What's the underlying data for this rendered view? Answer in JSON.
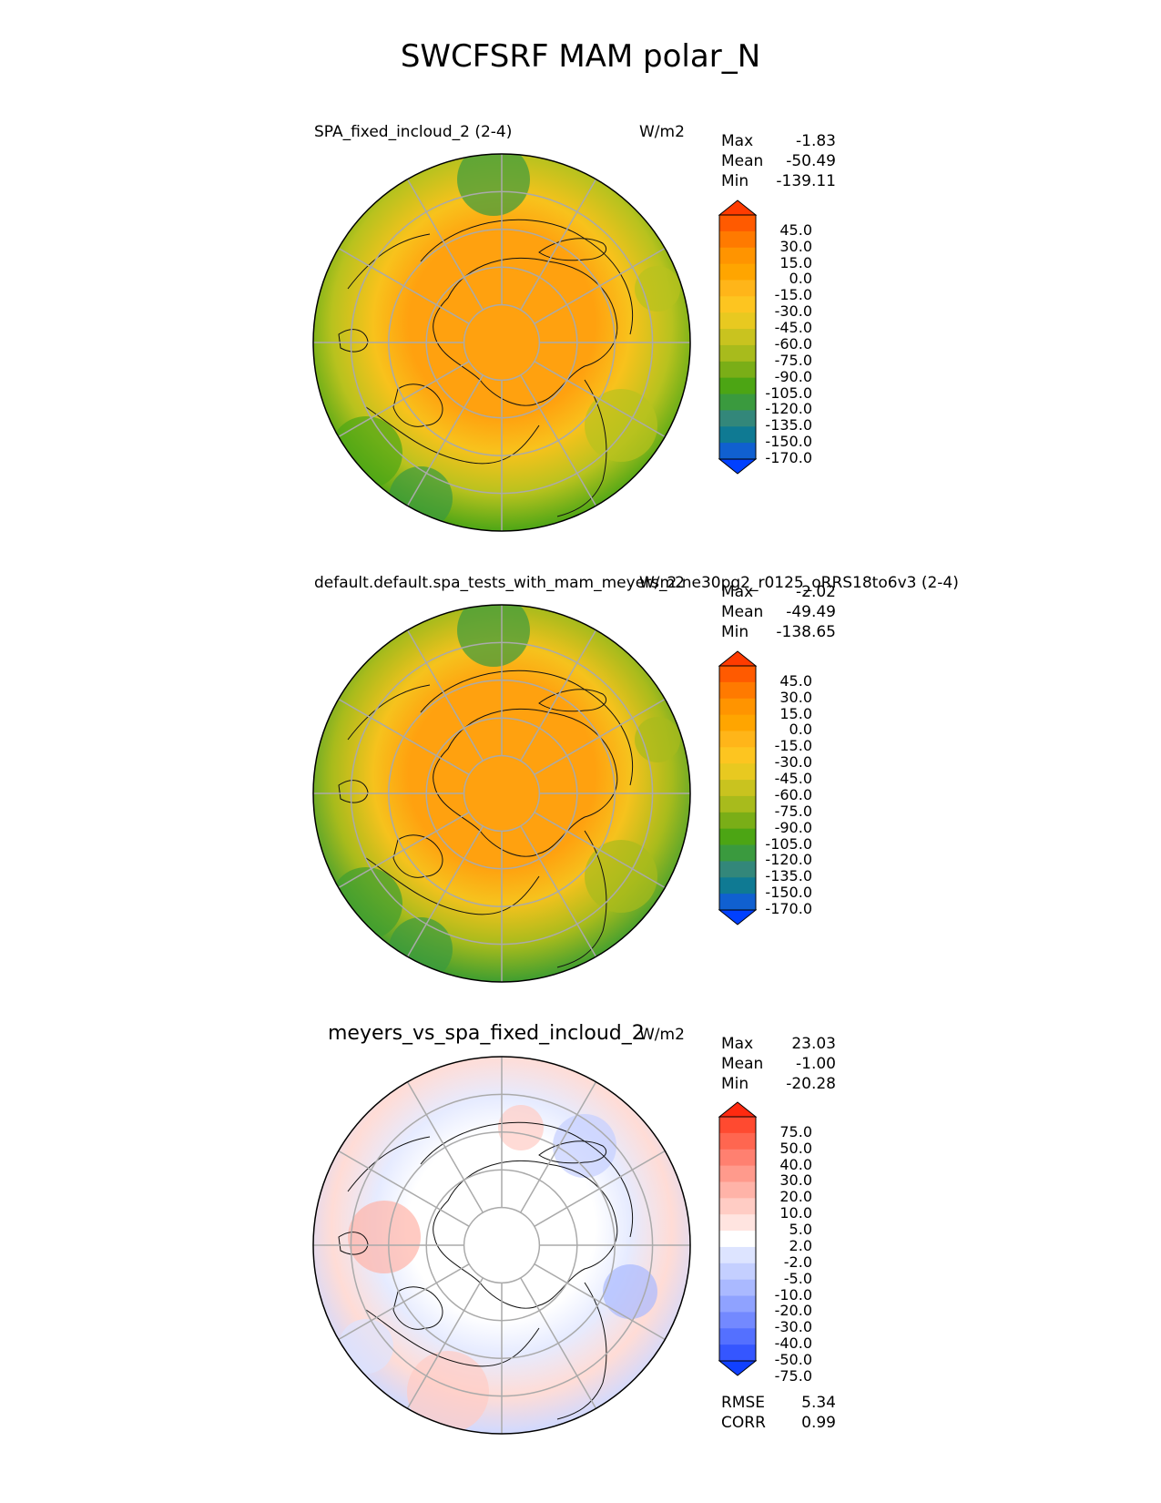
{
  "figure_title": "SWCFSRF MAM polar_N",
  "chart_data": [
    {
      "type": "heatmap",
      "projection": "north-polar-stereographic",
      "title": "SPA_fixed_incloud_2 (2-4)",
      "units": "W/m2",
      "stats": {
        "max_label": "Max",
        "max": "-1.83",
        "mean_label": "Mean",
        "mean": "-50.49",
        "min_label": "Min",
        "min": "-139.11"
      },
      "colorbar": {
        "levels": [
          "45.0",
          "30.0",
          "15.0",
          "0.0",
          "-15.0",
          "-30.0",
          "-45.0",
          "-60.0",
          "-75.0",
          "-90.0",
          "-105.0",
          "-120.0",
          "-135.0",
          "-150.0",
          "-170.0"
        ],
        "colors": [
          "#ff3b00",
          "#ff5a00",
          "#ff7a00",
          "#ff9400",
          "#ffa500",
          "#ffb519",
          "#fdc520",
          "#e8c920",
          "#c9c31f",
          "#a8bb1c",
          "#7aae17",
          "#4ca514",
          "#3a9a3e",
          "#33877a",
          "#0f7a93",
          "#1060d0",
          "#0040ff"
        ]
      },
      "field": {
        "pole": "#ffa10f",
        "mid": "#f8c21c",
        "outer": "#b8c21e",
        "edge": "#4da616"
      }
    },
    {
      "type": "heatmap",
      "projection": "north-polar-stereographic",
      "title": "default.default.spa_tests_with_mam_meyers_2.ne30pg2_r0125_oRRS18to6v3 (2-4)",
      "units": "W/m2",
      "stats": {
        "max_label": "Max",
        "max": "-2.02",
        "mean_label": "Mean",
        "mean": "-49.49",
        "min_label": "Min",
        "min": "-138.65"
      },
      "colorbar": {
        "levels": [
          "45.0",
          "30.0",
          "15.0",
          "0.0",
          "-15.0",
          "-30.0",
          "-45.0",
          "-60.0",
          "-75.0",
          "-90.0",
          "-105.0",
          "-120.0",
          "-135.0",
          "-150.0",
          "-170.0"
        ],
        "colors": [
          "#ff3b00",
          "#ff5a00",
          "#ff7a00",
          "#ff9400",
          "#ffa500",
          "#ffb519",
          "#fdc520",
          "#e8c920",
          "#c9c31f",
          "#a8bb1c",
          "#7aae17",
          "#4ca514",
          "#3a9a3e",
          "#33877a",
          "#0f7a93",
          "#1060d0",
          "#0040ff"
        ]
      },
      "field": {
        "pole": "#ffa10f",
        "mid": "#f6c21d",
        "outer": "#a8bb1c",
        "edge": "#3f9e30"
      }
    },
    {
      "type": "heatmap",
      "projection": "north-polar-stereographic",
      "title": "meyers_vs_spa_fixed_incloud_2",
      "units": "W/m2",
      "stats": {
        "max_label": "Max",
        "max": "23.03",
        "mean_label": "Mean",
        "mean": "-1.00",
        "min_label": "Min",
        "min": "-20.28"
      },
      "colorbar": {
        "levels": [
          "75.0",
          "50.0",
          "40.0",
          "30.0",
          "20.0",
          "10.0",
          "5.0",
          "2.0",
          "-2.0",
          "-5.0",
          "-10.0",
          "-20.0",
          "-30.0",
          "-40.0",
          "-50.0",
          "-75.0"
        ],
        "colors": [
          "#ff2a10",
          "#ff4a30",
          "#ff6650",
          "#ff8070",
          "#ff9a8c",
          "#ffb3a8",
          "#ffccc4",
          "#ffe4e0",
          "#ffffff",
          "#dde4ff",
          "#c4cfff",
          "#aab9ff",
          "#8fa2ff",
          "#7389ff",
          "#5470ff",
          "#3556ff",
          "#1040ff"
        ]
      },
      "field": {
        "pole": "#ffffff",
        "mid": "#e6ebff",
        "outer": "#ffdcd6",
        "edge": "#d0d9ff"
      },
      "summary": {
        "rmse_label": "RMSE",
        "rmse": "5.34",
        "corr_label": "CORR",
        "corr": "0.99"
      }
    }
  ]
}
